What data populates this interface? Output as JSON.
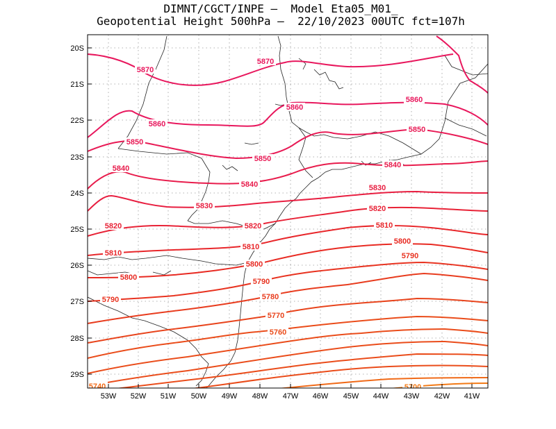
{
  "title_line1": "DIMNT/CGCT/INPE –  Model Eta05_M01_",
  "title_line2": "Geopotential Height 500hPa –  22/10/2023 00UTC fct=107h",
  "lat_ticks": [
    "20S",
    "21S",
    "22S",
    "23S",
    "24S",
    "25S",
    "26S",
    "27S",
    "28S",
    "29S"
  ],
  "lon_ticks": [
    "53W",
    "52W",
    "51W",
    "50W",
    "49W",
    "48W",
    "47W",
    "46W",
    "45W",
    "44W",
    "43W",
    "42W",
    "41W"
  ],
  "contours": [
    {
      "value": "5870",
      "color": "#e8175d"
    },
    {
      "value": "5860",
      "color": "#e8175d"
    },
    {
      "value": "5850",
      "color": "#e81a55"
    },
    {
      "value": "5840",
      "color": "#e81c4c"
    },
    {
      "value": "5830",
      "color": "#e81e40"
    },
    {
      "value": "5820",
      "color": "#e82236"
    },
    {
      "value": "5810",
      "color": "#e8262a"
    },
    {
      "value": "5800",
      "color": "#e82a22"
    },
    {
      "value": "5790",
      "color": "#e83320"
    },
    {
      "value": "5780",
      "color": "#e83c1e"
    },
    {
      "value": "5770",
      "color": "#e8441c"
    },
    {
      "value": "5760",
      "color": "#ea4c1a"
    },
    {
      "value": "5740",
      "color": "#f06a18"
    },
    {
      "value": "5700",
      "color": "#f27a16"
    }
  ]
}
